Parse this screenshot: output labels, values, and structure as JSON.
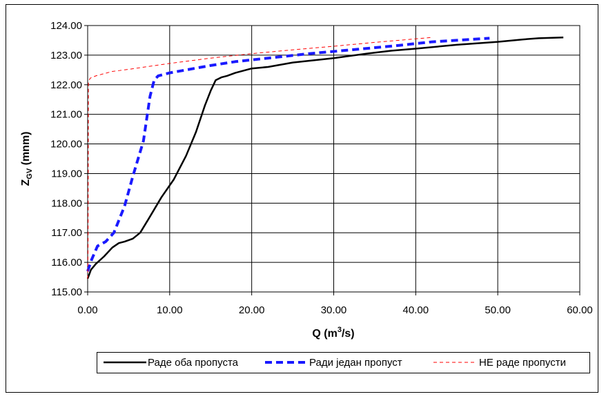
{
  "chart_data": {
    "type": "line",
    "title": "",
    "xlabel": {
      "main": "Q (m",
      "sup": "3",
      "tail": "/s)"
    },
    "ylabel": {
      "main": "Z",
      "sub": "GV",
      "tail": " (mnm)"
    },
    "xlim": [
      0,
      60
    ],
    "ylim": [
      115,
      124
    ],
    "x_ticks": [
      0,
      10,
      20,
      30,
      40,
      50,
      60
    ],
    "y_ticks": [
      115,
      116,
      117,
      118,
      119,
      120,
      121,
      122,
      123,
      124
    ],
    "x_tick_labels": [
      "0.00",
      "10.00",
      "20.00",
      "30.00",
      "40.00",
      "50.00",
      "60.00"
    ],
    "y_tick_labels": [
      "115.00",
      "116.00",
      "117.00",
      "118.00",
      "119.00",
      "120.00",
      "121.00",
      "122.00",
      "123.00",
      "124.00"
    ],
    "grid": true,
    "legend_position": "bottom",
    "series": [
      {
        "name": "Раде оба пропуста",
        "color": "#000000",
        "style": "solid",
        "points": [
          [
            0,
            115.45
          ],
          [
            0.4,
            115.75
          ],
          [
            1.0,
            115.95
          ],
          [
            2.0,
            116.2
          ],
          [
            3.0,
            116.5
          ],
          [
            3.8,
            116.65
          ],
          [
            4.5,
            116.7
          ],
          [
            5.5,
            116.8
          ],
          [
            6.4,
            117.0
          ],
          [
            7.5,
            117.5
          ],
          [
            9.0,
            118.2
          ],
          [
            10.5,
            118.8
          ],
          [
            12.0,
            119.6
          ],
          [
            13.2,
            120.4
          ],
          [
            14.3,
            121.3
          ],
          [
            15.0,
            121.8
          ],
          [
            15.6,
            122.15
          ],
          [
            16.3,
            122.25
          ],
          [
            17.0,
            122.3
          ],
          [
            18.0,
            122.4
          ],
          [
            20.0,
            122.55
          ],
          [
            22.0,
            122.6
          ],
          [
            25.0,
            122.75
          ],
          [
            30.0,
            122.9
          ],
          [
            34.0,
            123.05
          ],
          [
            37.0,
            123.15
          ],
          [
            40.0,
            123.22
          ],
          [
            45.0,
            123.35
          ],
          [
            50.0,
            123.45
          ],
          [
            53.0,
            123.53
          ],
          [
            55.0,
            123.57
          ],
          [
            58.0,
            123.6
          ]
        ]
      },
      {
        "name": "Ради један пропуст",
        "color": "#1a1aff",
        "style": "dash-thick",
        "points": [
          [
            0,
            115.7
          ],
          [
            0.5,
            116.1
          ],
          [
            1.2,
            116.55
          ],
          [
            2.2,
            116.7
          ],
          [
            3.2,
            117.0
          ],
          [
            4.5,
            117.9
          ],
          [
            5.5,
            118.9
          ],
          [
            6.8,
            120.1
          ],
          [
            7.6,
            121.6
          ],
          [
            8.1,
            122.15
          ],
          [
            8.6,
            122.3
          ],
          [
            10.0,
            122.4
          ],
          [
            12.0,
            122.5
          ],
          [
            15.0,
            122.65
          ],
          [
            18.0,
            122.78
          ],
          [
            22.0,
            122.9
          ],
          [
            27.0,
            123.05
          ],
          [
            33.0,
            123.2
          ],
          [
            38.0,
            123.33
          ],
          [
            42.0,
            123.45
          ],
          [
            46.0,
            123.52
          ],
          [
            49.0,
            123.57
          ]
        ]
      },
      {
        "name": "НЕ раде пропусти",
        "color": "#ff0000",
        "style": "dash-thin",
        "points": [
          [
            0,
            115.45
          ],
          [
            0.05,
            116.5
          ],
          [
            0.1,
            122.1
          ],
          [
            0.3,
            122.22
          ],
          [
            1.0,
            122.3
          ],
          [
            3.0,
            122.45
          ],
          [
            5.0,
            122.52
          ],
          [
            7.0,
            122.6
          ],
          [
            10.0,
            122.72
          ],
          [
            15.0,
            122.9
          ],
          [
            20.0,
            123.05
          ],
          [
            25.0,
            123.18
          ],
          [
            30.0,
            123.3
          ],
          [
            35.0,
            123.43
          ],
          [
            40.0,
            123.55
          ],
          [
            42.0,
            123.6
          ]
        ]
      }
    ]
  }
}
